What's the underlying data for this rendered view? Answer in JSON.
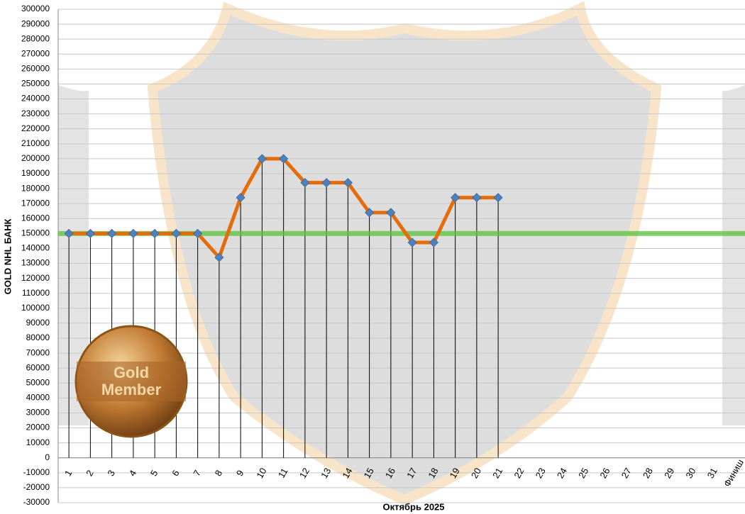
{
  "chart_data": {
    "type": "line",
    "x_label": "Октябрь 2025",
    "y_label": "GOLD NHL БАНК",
    "badge": [
      "Gold",
      "Member"
    ],
    "categories": [
      "1",
      "2",
      "3",
      "4",
      "5",
      "6",
      "7",
      "8",
      "9",
      "10",
      "11",
      "12",
      "13",
      "14",
      "15",
      "16",
      "17",
      "18",
      "19",
      "20",
      "21",
      "22",
      "23",
      "24",
      "25",
      "26",
      "27",
      "28",
      "29",
      "30",
      "31",
      "Финиш"
    ],
    "series": [
      {
        "color": "#e46c0a",
        "marker_color": "#4f81bd",
        "values": [
          150000,
          150000,
          150000,
          150000,
          150000,
          150000,
          150000,
          134000,
          174000,
          200000,
          200000,
          184000,
          184000,
          184000,
          164000,
          164000,
          144000,
          144000,
          174000,
          174000,
          174000,
          null,
          null,
          null,
          null,
          null,
          null,
          null,
          null,
          null,
          null,
          null
        ]
      }
    ],
    "reference_line": {
      "value": 150000,
      "color": "#5cc43c"
    },
    "ylim": [
      -30000,
      300000
    ],
    "yticks": [
      -30000,
      -20000,
      -10000,
      0,
      10000,
      20000,
      30000,
      40000,
      50000,
      60000,
      70000,
      80000,
      90000,
      100000,
      110000,
      120000,
      130000,
      140000,
      150000,
      160000,
      170000,
      180000,
      190000,
      200000,
      210000,
      220000,
      230000,
      240000,
      250000,
      260000,
      270000,
      280000,
      290000,
      300000
    ],
    "grid": true
  }
}
